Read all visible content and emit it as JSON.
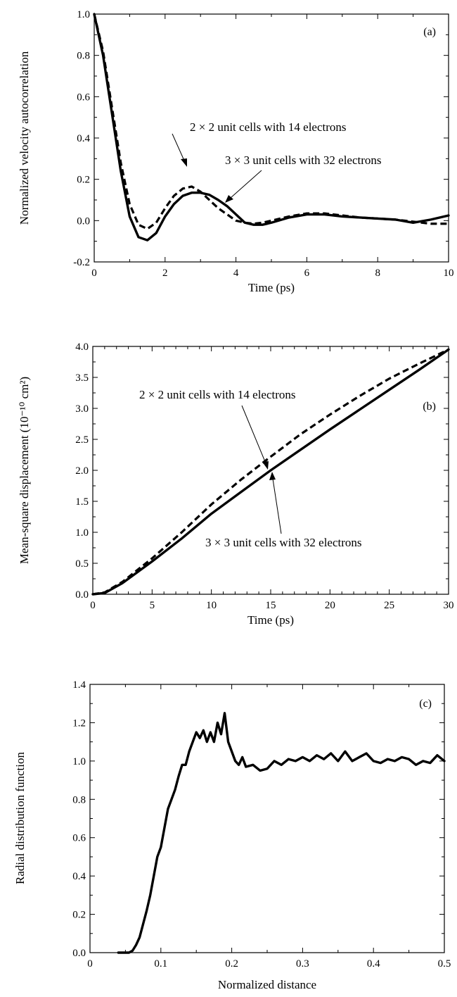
{
  "chart_data": [
    {
      "type": "line",
      "panel_label": "(a)",
      "xlabel": "Time (ps)",
      "ylabel": "Normalized velocity autocorrelation",
      "xlim": [
        0,
        10
      ],
      "ylim": [
        -0.2,
        1.0
      ],
      "xticks": [
        "0",
        "2",
        "4",
        "6",
        "8",
        "10"
      ],
      "yticks": [
        "-0.2",
        "0.0",
        "0.2",
        "0.4",
        "0.6",
        "0.8",
        "1.0"
      ],
      "series": [
        {
          "name": "2 × 2 unit cells with 14 electrons",
          "style": "dashed",
          "x": [
            0,
            0.25,
            0.5,
            0.75,
            1.0,
            1.25,
            1.5,
            1.75,
            2.0,
            2.25,
            2.5,
            2.75,
            3.0,
            3.25,
            3.5,
            3.75,
            4.0,
            4.25,
            4.5,
            4.75,
            5.0,
            5.5,
            6.0,
            6.5,
            7.0,
            7.5,
            8.0,
            8.5,
            9.0,
            9.5,
            10.0
          ],
          "y": [
            1.0,
            0.82,
            0.55,
            0.28,
            0.08,
            -0.02,
            -0.04,
            -0.01,
            0.06,
            0.12,
            0.155,
            0.165,
            0.14,
            0.1,
            0.06,
            0.03,
            0.0,
            -0.01,
            -0.015,
            -0.01,
            0.0,
            0.02,
            0.035,
            0.035,
            0.025,
            0.015,
            0.01,
            0.005,
            -0.005,
            -0.015,
            -0.015
          ]
        },
        {
          "name": "3 × 3 unit cells with 32 electrons",
          "style": "solid",
          "x": [
            0,
            0.25,
            0.5,
            0.75,
            1.0,
            1.25,
            1.5,
            1.75,
            2.0,
            2.25,
            2.5,
            2.75,
            3.0,
            3.25,
            3.5,
            3.75,
            4.0,
            4.25,
            4.5,
            4.75,
            5.0,
            5.5,
            6.0,
            6.5,
            7.0,
            7.5,
            8.0,
            8.5,
            9.0,
            9.5,
            10.0
          ],
          "y": [
            1.0,
            0.8,
            0.52,
            0.24,
            0.02,
            -0.08,
            -0.095,
            -0.06,
            0.02,
            0.08,
            0.12,
            0.135,
            0.135,
            0.125,
            0.1,
            0.07,
            0.03,
            -0.01,
            -0.02,
            -0.02,
            -0.01,
            0.015,
            0.03,
            0.03,
            0.02,
            0.015,
            0.01,
            0.005,
            -0.01,
            0.005,
            0.025
          ]
        }
      ],
      "annotations": [
        {
          "text": "2 × 2  unit cells with 14 electrons"
        },
        {
          "text": "3 × 3  unit cells with 32 electrons"
        }
      ]
    },
    {
      "type": "line",
      "panel_label": "(b)",
      "xlabel": "Time (ps)",
      "ylabel": "Mean-square displacement (10⁻¹⁰ cm²)",
      "xlim": [
        0,
        30
      ],
      "ylim": [
        0,
        4.0
      ],
      "xticks": [
        "0",
        "5",
        "10",
        "15",
        "20",
        "25",
        "30"
      ],
      "yticks": [
        "0.0",
        "0.5",
        "1.0",
        "1.5",
        "2.0",
        "2.5",
        "3.0",
        "3.5",
        "4.0"
      ],
      "series": [
        {
          "name": "2 × 2 unit cells with 14 electrons",
          "style": "dashed",
          "x": [
            0,
            1,
            2.5,
            5,
            7.5,
            10,
            12.5,
            15,
            17.5,
            20,
            22.5,
            25,
            27.5,
            30
          ],
          "y": [
            0,
            0.03,
            0.2,
            0.58,
            1.0,
            1.45,
            1.85,
            2.22,
            2.58,
            2.9,
            3.2,
            3.48,
            3.72,
            3.95
          ]
        },
        {
          "name": "3 × 3 unit cells with 32 electrons",
          "style": "solid",
          "x": [
            0,
            1,
            2.5,
            5,
            7.5,
            10,
            12.5,
            15,
            17.5,
            20,
            22.5,
            25,
            27.5,
            30
          ],
          "y": [
            0,
            0.02,
            0.18,
            0.53,
            0.9,
            1.3,
            1.65,
            2.0,
            2.33,
            2.66,
            2.98,
            3.3,
            3.62,
            3.95
          ]
        }
      ],
      "annotations": [
        {
          "text": "2 × 2  unit cells with 14 electrons"
        },
        {
          "text": "3 × 3  unit cells with 32 electrons"
        }
      ]
    },
    {
      "type": "line",
      "panel_label": "(c)",
      "xlabel": "Normalized distance",
      "ylabel": "Radial distribution function",
      "xlim": [
        0,
        0.5
      ],
      "ylim": [
        0,
        1.4
      ],
      "xticks": [
        "0",
        "0.1",
        "0.2",
        "0.3",
        "0.4",
        "0.5"
      ],
      "yticks": [
        "0.0",
        "0.2",
        "0.4",
        "0.6",
        "0.8",
        "1.0",
        "1.2",
        "1.4"
      ],
      "series": [
        {
          "name": "",
          "style": "solid",
          "x": [
            0.04,
            0.05,
            0.055,
            0.06,
            0.065,
            0.07,
            0.075,
            0.08,
            0.085,
            0.09,
            0.095,
            0.1,
            0.105,
            0.11,
            0.115,
            0.12,
            0.125,
            0.13,
            0.135,
            0.14,
            0.145,
            0.15,
            0.155,
            0.16,
            0.165,
            0.17,
            0.175,
            0.18,
            0.185,
            0.19,
            0.195,
            0.2,
            0.205,
            0.21,
            0.215,
            0.22,
            0.23,
            0.24,
            0.25,
            0.26,
            0.27,
            0.28,
            0.29,
            0.3,
            0.31,
            0.32,
            0.33,
            0.34,
            0.35,
            0.36,
            0.37,
            0.38,
            0.39,
            0.4,
            0.41,
            0.42,
            0.43,
            0.44,
            0.45,
            0.46,
            0.47,
            0.48,
            0.49,
            0.5
          ],
          "y": [
            0.0,
            0.0,
            0.0,
            0.01,
            0.04,
            0.08,
            0.15,
            0.22,
            0.3,
            0.4,
            0.5,
            0.55,
            0.65,
            0.75,
            0.8,
            0.85,
            0.92,
            0.98,
            0.98,
            1.05,
            1.1,
            1.15,
            1.12,
            1.16,
            1.1,
            1.15,
            1.1,
            1.2,
            1.14,
            1.25,
            1.1,
            1.05,
            1.0,
            0.98,
            1.02,
            0.97,
            0.98,
            0.95,
            0.96,
            1.0,
            0.98,
            1.01,
            1.0,
            1.02,
            1.0,
            1.03,
            1.01,
            1.04,
            1.0,
            1.05,
            1.0,
            1.02,
            1.04,
            1.0,
            0.99,
            1.01,
            1.0,
            1.02,
            1.01,
            0.98,
            1.0,
            0.99,
            1.03,
            1.0
          ]
        }
      ]
    }
  ]
}
